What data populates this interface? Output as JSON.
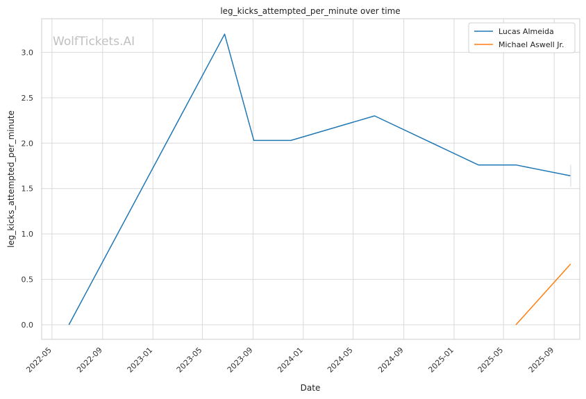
{
  "chart_data": {
    "type": "line",
    "title": "leg_kicks_attempted_per_minute over time",
    "xlabel": "Date",
    "ylabel": "leg_kicks_attempted_per_minute",
    "watermark": "WolfTickets.AI",
    "xlim": [
      "2022-04-06",
      "2025-11-02"
    ],
    "ylim": [
      -0.16,
      3.37
    ],
    "x_ticks": [
      "2022-05",
      "2022-09",
      "2023-01",
      "2023-05",
      "2023-09",
      "2024-01",
      "2024-05",
      "2024-09",
      "2025-01",
      "2025-05",
      "2025-09"
    ],
    "y_ticks": [
      0.0,
      0.5,
      1.0,
      1.5,
      2.0,
      2.5,
      3.0
    ],
    "y_tick_labels": [
      "0.0",
      "0.5",
      "1.0",
      "1.5",
      "2.0",
      "2.5",
      "3.0"
    ],
    "grid": true,
    "legend_position": "top-right",
    "series": [
      {
        "name": "Lucas Almeida",
        "color": "#1f77b4",
        "points": [
          {
            "x": "2022-06-11",
            "y": 0.0
          },
          {
            "x": "2023-06-24",
            "y": 3.2
          },
          {
            "x": "2023-09-03",
            "y": 2.03
          },
          {
            "x": "2023-12-02",
            "y": 2.03
          },
          {
            "x": "2024-06-22",
            "y": 2.3
          },
          {
            "x": "2025-03-01",
            "y": 1.76
          },
          {
            "x": "2025-05-31",
            "y": 1.76
          },
          {
            "x": "2025-10-11",
            "y": 1.64
          }
        ]
      },
      {
        "name": "Michael Aswell Jr.",
        "color": "#ff7f0e",
        "points": [
          {
            "x": "2025-05-31",
            "y": 0.0
          },
          {
            "x": "2025-10-11",
            "y": 0.67
          }
        ]
      }
    ]
  }
}
